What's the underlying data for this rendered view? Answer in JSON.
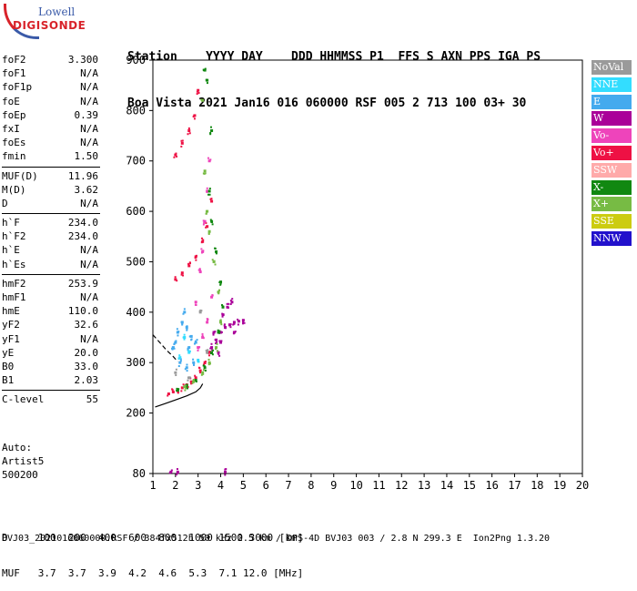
{
  "logo": {
    "line1": "Lowell",
    "line2": "DIGISONDE"
  },
  "header": {
    "labels": [
      "Station",
      "YYYY",
      "DAY",
      "DDD",
      "HHMMSS",
      "P1",
      "FFS",
      "S",
      "AXN",
      "PPS",
      "IGA",
      "PS"
    ],
    "values": [
      "Boa Vista",
      "2021",
      "Jan16",
      "016",
      "060000",
      "RSF",
      "005",
      "2",
      "713",
      "100",
      "03+",
      "30"
    ]
  },
  "params_groups": [
    [
      [
        "foF2",
        "3.300"
      ],
      [
        "foF1",
        "N/A"
      ],
      [
        "foF1p",
        "N/A"
      ],
      [
        "foE",
        "N/A"
      ],
      [
        "foEp",
        "0.39"
      ],
      [
        "fxI",
        "N/A"
      ],
      [
        "foEs",
        "N/A"
      ],
      [
        "fmin",
        "1.50"
      ]
    ],
    [
      [
        "MUF(D)",
        "11.96"
      ],
      [
        "M(D)",
        "3.62"
      ],
      [
        "D",
        "N/A"
      ]
    ],
    [
      [
        "h`F",
        "234.0"
      ],
      [
        "h`F2",
        "234.0"
      ],
      [
        "h`E",
        "N/A"
      ],
      [
        "h`Es",
        "N/A"
      ]
    ],
    [
      [
        "hmF2",
        "253.9"
      ],
      [
        "hmF1",
        "N/A"
      ],
      [
        "hmE",
        "110.0"
      ],
      [
        "yF2",
        "32.6"
      ],
      [
        "yF1",
        "N/A"
      ],
      [
        "yE",
        "20.0"
      ],
      [
        "B0",
        "33.0"
      ],
      [
        "B1",
        "2.03"
      ]
    ],
    [
      [
        "C-level",
        "55"
      ]
    ]
  ],
  "auto": {
    "line1": "Auto:",
    "line2": "Artist5",
    "line3": "500200"
  },
  "legend": [
    {
      "label": "NoVal",
      "color": "#9a9a9a"
    },
    {
      "label": "NNE",
      "color": "#33ddff"
    },
    {
      "label": "E",
      "color": "#44aaee"
    },
    {
      "label": "W",
      "color": "#aa0099"
    },
    {
      "label": "Vo-",
      "color": "#ee44bb"
    },
    {
      "label": "Vo+",
      "color": "#ee1144"
    },
    {
      "label": "SSW",
      "color": "#ffaaaa"
    },
    {
      "label": "X-",
      "color": "#118811"
    },
    {
      "label": "X+",
      "color": "#77bb44"
    },
    {
      "label": "SSE",
      "color": "#cccc11"
    },
    {
      "label": "NNW",
      "color": "#2211cc"
    }
  ],
  "bottom": {
    "d_label": "D",
    "d_values": [
      "100",
      "200",
      "400",
      "600",
      "800",
      "1000",
      "1500",
      "3000"
    ],
    "d_unit": "[km]",
    "muf_label": "MUF",
    "muf_values": [
      "3.7",
      "3.7",
      "3.9",
      "4.2",
      "4.6",
      "5.3",
      "7.1",
      "12.0"
    ],
    "muf_unit": "[MHz]"
  },
  "footer": "BVJ03_2021016060000.RSF / 384fx512h 50 kHz 2.5 km / DPS-4D BVJ03 003 / 2.8 N 299.3 E  Ion2Png 1.3.20",
  "chart_data": {
    "type": "scatter",
    "xlim": [
      1,
      20
    ],
    "ylim": [
      80,
      900
    ],
    "x_ticks": [
      1,
      2,
      3,
      4,
      5,
      6,
      7,
      8,
      9,
      10,
      11,
      12,
      13,
      14,
      15,
      16,
      17,
      18,
      19,
      20
    ],
    "y_ticks": [
      80,
      200,
      300,
      400,
      500,
      600,
      700,
      800,
      900
    ],
    "grid": false,
    "legend_placement": "right",
    "clusters": [
      {
        "series": "Vo+",
        "points": [
          [
            1.7,
            238
          ],
          [
            1.9,
            242
          ],
          [
            2.1,
            246
          ],
          [
            2.3,
            250
          ],
          [
            2.5,
            256
          ],
          [
            2.7,
            262
          ],
          [
            2.9,
            270
          ],
          [
            3.1,
            284
          ],
          [
            3.3,
            300
          ],
          [
            3.5,
            320
          ],
          [
            2.0,
            465
          ],
          [
            2.3,
            478
          ],
          [
            2.6,
            492
          ],
          [
            2.9,
            510
          ],
          [
            3.2,
            540
          ],
          [
            3.4,
            570
          ],
          [
            3.6,
            620
          ],
          [
            2.0,
            712
          ],
          [
            2.3,
            735
          ],
          [
            2.6,
            760
          ],
          [
            2.85,
            790
          ],
          [
            3.0,
            840
          ]
        ]
      },
      {
        "series": "Vo-",
        "points": [
          [
            2.9,
            420
          ],
          [
            3.1,
            480
          ],
          [
            3.2,
            520
          ],
          [
            3.3,
            580
          ],
          [
            3.4,
            640
          ],
          [
            3.5,
            700
          ],
          [
            3.2,
            350
          ],
          [
            3.4,
            380
          ],
          [
            3.0,
            330
          ],
          [
            3.6,
            430
          ]
        ]
      },
      {
        "series": "W",
        "points": [
          [
            3.6,
            330
          ],
          [
            3.8,
            345
          ],
          [
            4.0,
            360
          ],
          [
            4.2,
            370
          ],
          [
            4.4,
            375
          ],
          [
            4.6,
            380
          ],
          [
            4.8,
            382
          ],
          [
            5.0,
            384
          ],
          [
            3.9,
            320
          ],
          [
            4.1,
            395
          ],
          [
            4.3,
            410
          ],
          [
            4.5,
            420
          ],
          [
            3.7,
            360
          ],
          [
            4.0,
            340
          ],
          [
            4.6,
            360
          ],
          [
            1.8,
            83
          ],
          [
            2.1,
            83
          ],
          [
            4.2,
            83
          ]
        ]
      },
      {
        "series": "E",
        "points": [
          [
            1.9,
            330
          ],
          [
            2.1,
            360
          ],
          [
            2.3,
            380
          ],
          [
            2.5,
            370
          ],
          [
            2.7,
            352
          ],
          [
            2.9,
            340
          ],
          [
            2.2,
            300
          ],
          [
            2.5,
            290
          ],
          [
            2.8,
            300
          ],
          [
            2.0,
            340
          ],
          [
            2.4,
            400
          ],
          [
            2.6,
            330
          ]
        ]
      },
      {
        "series": "NNE",
        "points": [
          [
            2.2,
            310
          ],
          [
            2.6,
            320
          ],
          [
            3.0,
            305
          ],
          [
            2.4,
            350
          ]
        ]
      },
      {
        "series": "X-",
        "points": [
          [
            2.1,
            245
          ],
          [
            2.5,
            255
          ],
          [
            2.9,
            265
          ],
          [
            3.3,
            290
          ],
          [
            3.6,
            320
          ],
          [
            3.9,
            360
          ],
          [
            4.1,
            410
          ],
          [
            4.0,
            460
          ],
          [
            3.8,
            520
          ],
          [
            3.6,
            580
          ],
          [
            3.5,
            640
          ],
          [
            3.6,
            760
          ],
          [
            3.4,
            860
          ],
          [
            3.3,
            880
          ]
        ]
      },
      {
        "series": "X+",
        "points": [
          [
            2.4,
            252
          ],
          [
            2.8,
            262
          ],
          [
            3.2,
            280
          ],
          [
            3.5,
            300
          ],
          [
            3.8,
            330
          ],
          [
            4.0,
            380
          ],
          [
            3.9,
            440
          ],
          [
            3.7,
            500
          ],
          [
            3.5,
            560
          ],
          [
            3.4,
            600
          ],
          [
            3.3,
            680
          ],
          [
            3.2,
            820
          ]
        ]
      },
      {
        "series": "NoVal",
        "points": [
          [
            2.0,
            280
          ],
          [
            2.6,
            270
          ],
          [
            3.4,
            320
          ],
          [
            3.1,
            400
          ]
        ]
      }
    ],
    "lines": [
      {
        "style": "solid",
        "points": [
          [
            1.1,
            212
          ],
          [
            1.5,
            218
          ],
          [
            2.0,
            226
          ],
          [
            2.5,
            234
          ],
          [
            2.9,
            242
          ],
          [
            3.1,
            250
          ],
          [
            3.2,
            258
          ]
        ]
      },
      {
        "style": "dashed",
        "points": [
          [
            1.0,
            355
          ],
          [
            1.3,
            340
          ],
          [
            1.6,
            325
          ],
          [
            1.9,
            312
          ],
          [
            2.1,
            302
          ]
        ]
      }
    ]
  }
}
